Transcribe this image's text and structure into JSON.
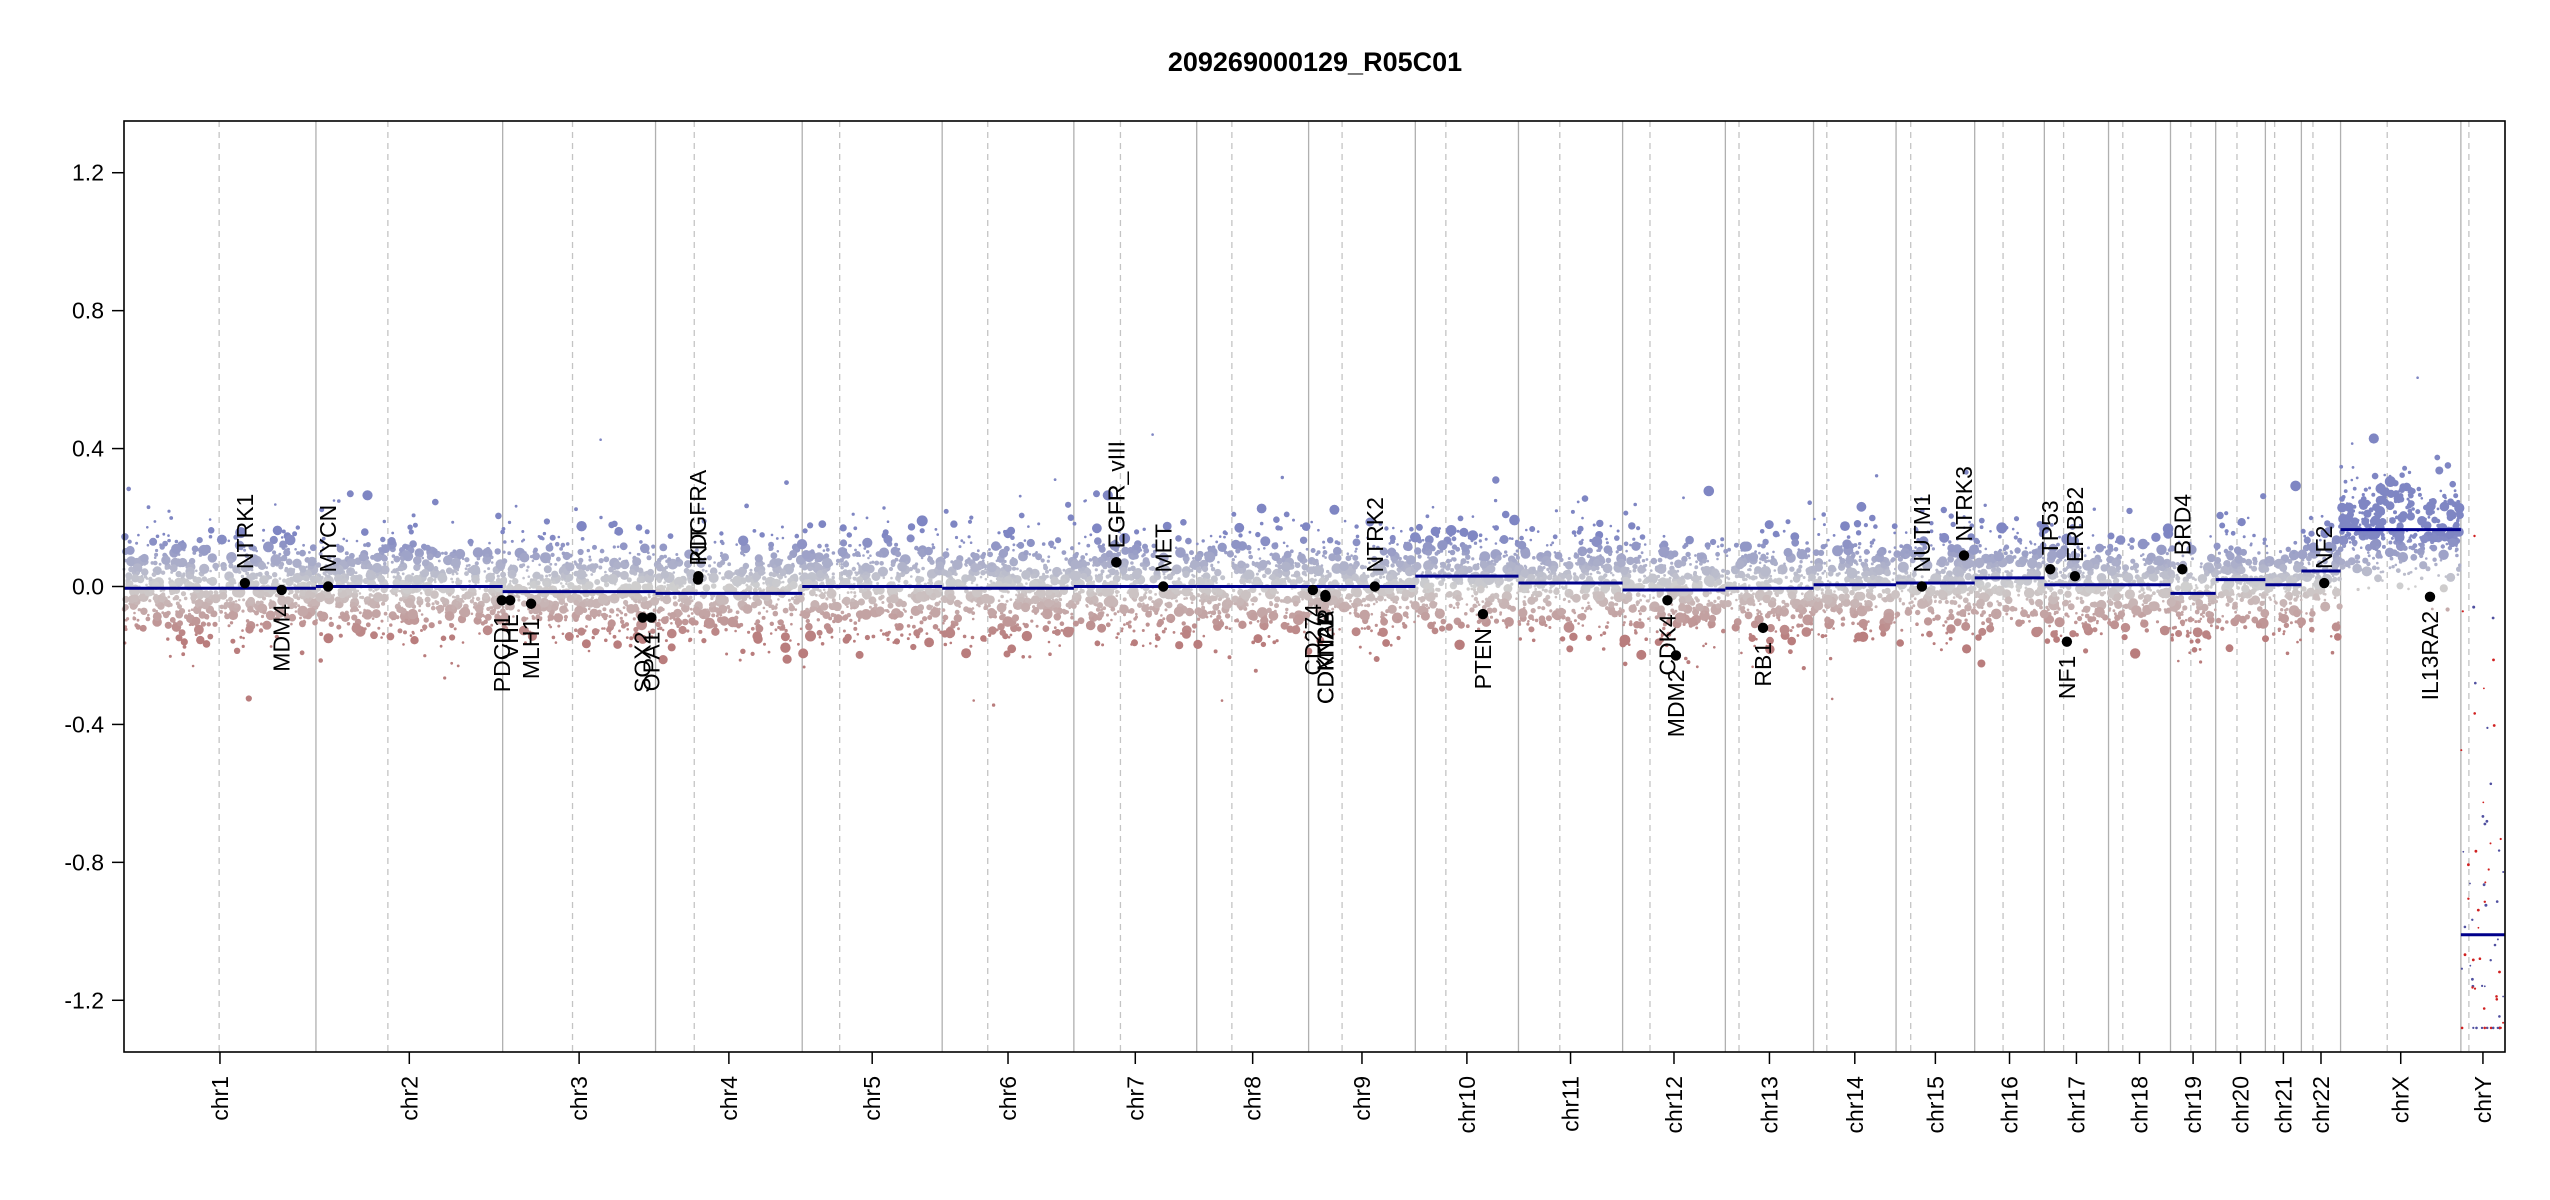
{
  "chart_data": {
    "type": "scatter",
    "title": "209269000129_R05C01",
    "xlabel": "",
    "ylabel": "",
    "ylim": [
      -1.35,
      1.35
    ],
    "yticks": [
      1.2,
      0.8,
      0.4,
      0.0,
      -0.4,
      -0.8,
      -1.2
    ],
    "ytick_labels": [
      "1.2",
      "0.8",
      "0.4",
      "0.0",
      "-0.4",
      "-0.8",
      "-1.2"
    ],
    "grid": false,
    "colors": {
      "positive": "#7f86c3",
      "negative": "#b97d7d",
      "neutral": "#cfcfcf",
      "segment": "#00008b",
      "chrom_divider": "#b0b0b0",
      "centromere": "#c4c4c4",
      "gene_point": "#000000"
    },
    "chromosomes": [
      {
        "name": "chr1",
        "start": 0,
        "end": 248.96,
        "centromere": 123.4,
        "segment_mean": -0.005
      },
      {
        "name": "chr2",
        "start": 248.96,
        "end": 491.15,
        "centromere": 342.26,
        "segment_mean": 0.0
      },
      {
        "name": "chr3",
        "start": 491.15,
        "end": 689.45,
        "centromere": 581.75,
        "segment_mean": -0.015
      },
      {
        "name": "chr4",
        "start": 689.45,
        "end": 879.67,
        "centromere": 739.65,
        "segment_mean": -0.02
      },
      {
        "name": "chr5",
        "start": 879.67,
        "end": 1061.21,
        "centromere": 928.27,
        "segment_mean": 0.0
      },
      {
        "name": "chr6",
        "start": 1061.21,
        "end": 1232.02,
        "centromere": 1120.31,
        "segment_mean": -0.005
      },
      {
        "name": "chr7",
        "start": 1232.02,
        "end": 1391.37,
        "centromere": 1292.42,
        "segment_mean": 0.0
      },
      {
        "name": "chr8",
        "start": 1391.37,
        "end": 1536.51,
        "centromere": 1436.97,
        "segment_mean": 0.0
      },
      {
        "name": "chr9",
        "start": 1536.51,
        "end": 1674.9,
        "centromere": 1579.91,
        "segment_mean": 0.0
      },
      {
        "name": "chr10",
        "start": 1674.9,
        "end": 1808.7,
        "centromere": 1714.52,
        "segment_mean": 0.03
      },
      {
        "name": "chr11",
        "start": 1808.7,
        "end": 1943.78,
        "centromere": 1862.3,
        "segment_mean": 0.01
      },
      {
        "name": "chr12",
        "start": 1943.78,
        "end": 2077.05,
        "centromere": 1979.28,
        "segment_mean": -0.01
      },
      {
        "name": "chr13",
        "start": 2077.05,
        "end": 2191.41,
        "centromere": 2094.75,
        "segment_mean": -0.005
      },
      {
        "name": "chr14",
        "start": 2191.41,
        "end": 2298.45,
        "centromere": 2208.61,
        "segment_mean": 0.005
      },
      {
        "name": "chr15",
        "start": 2298.45,
        "end": 2400.44,
        "centromere": 2317.45,
        "segment_mean": 0.01
      },
      {
        "name": "chr16",
        "start": 2400.44,
        "end": 2490.78,
        "centromere": 2437.24,
        "segment_mean": 0.025
      },
      {
        "name": "chr17",
        "start": 2490.78,
        "end": 2574.04,
        "centromere": 2515.78,
        "segment_mean": 0.005
      },
      {
        "name": "chr18",
        "start": 2574.04,
        "end": 2654.42,
        "centromere": 2592.54,
        "segment_mean": 0.005
      },
      {
        "name": "chr19",
        "start": 2654.42,
        "end": 2713.04,
        "centromere": 2680.82,
        "segment_mean": -0.02
      },
      {
        "name": "chr20",
        "start": 2713.04,
        "end": 2777.48,
        "centromere": 2740.64,
        "segment_mean": 0.02
      },
      {
        "name": "chr21",
        "start": 2777.48,
        "end": 2824.19,
        "centromere": 2789.48,
        "segment_mean": 0.005
      },
      {
        "name": "chr22",
        "start": 2824.19,
        "end": 2875.01,
        "centromere": 2839.19,
        "segment_mean": 0.045
      },
      {
        "name": "chrX",
        "start": 2875.01,
        "end": 3031.05,
        "centromere": 2935.51,
        "segment_mean": 0.165
      },
      {
        "name": "chrY",
        "start": 3031.05,
        "end": 3088.28,
        "centromere": 3041.45,
        "segment_mean": -1.01
      }
    ],
    "genes": [
      {
        "name": "NTRK1",
        "x": 156.8,
        "y": 0.01
      },
      {
        "name": "MDM4",
        "x": 204.5,
        "y": -0.01
      },
      {
        "name": "MYCN",
        "x": 264.8,
        "y": 0.0
      },
      {
        "name": "PDGFRA",
        "x": 744.5,
        "y": 0.02
      },
      {
        "name": "KIT",
        "x": 745.0,
        "y": 0.03
      },
      {
        "name": "PDCD1",
        "x": 490.0,
        "y": -0.04
      },
      {
        "name": "VHL",
        "x": 500.9,
        "y": -0.04
      },
      {
        "name": "MLH1",
        "x": 528.0,
        "y": -0.05
      },
      {
        "name": "SOX2",
        "x": 672.7,
        "y": -0.09
      },
      {
        "name": "OPA1",
        "x": 684.0,
        "y": -0.09
      },
      {
        "name": "EGFR",
        "x": 1287.1,
        "y": 0.07
      },
      {
        "name": "EGFR_vIII",
        "x": 1287.2,
        "y": 0.07
      },
      {
        "name": "MET",
        "x": 1348.0,
        "y": 0.0
      },
      {
        "name": "CD274",
        "x": 1542.0,
        "y": -0.01
      },
      {
        "name": "CDKN2A",
        "x": 1558.4,
        "y": -0.03
      },
      {
        "name": "CDKN2B",
        "x": 1558.5,
        "y": -0.03
      },
      {
        "name": "MTAP",
        "x": 1558.2,
        "y": -0.025
      },
      {
        "name": "NTRK2",
        "x": 1622.4,
        "y": 0.0
      },
      {
        "name": "PTEN",
        "x": 1762.6,
        "y": -0.08
      },
      {
        "name": "CDK4",
        "x": 2001.9,
        "y": -0.04
      },
      {
        "name": "MDM2",
        "x": 2012.9,
        "y": -0.2
      },
      {
        "name": "RB1",
        "x": 2125.9,
        "y": -0.12
      },
      {
        "name": "NUTM1",
        "x": 2332.0,
        "y": 0.0
      },
      {
        "name": "NTRK3",
        "x": 2386.6,
        "y": 0.09
      },
      {
        "name": "TP53",
        "x": 2498.4,
        "y": 0.05
      },
      {
        "name": "NF1",
        "x": 2520.0,
        "y": -0.16
      },
      {
        "name": "ERBB2",
        "x": 2530.5,
        "y": 0.03
      },
      {
        "name": "BRD4",
        "x": 2669.7,
        "y": 0.05
      },
      {
        "name": "NF2",
        "x": 2853.8,
        "y": 0.01
      },
      {
        "name": "IL13RA2",
        "x": 2991.0,
        "y": -0.03
      }
    ]
  }
}
